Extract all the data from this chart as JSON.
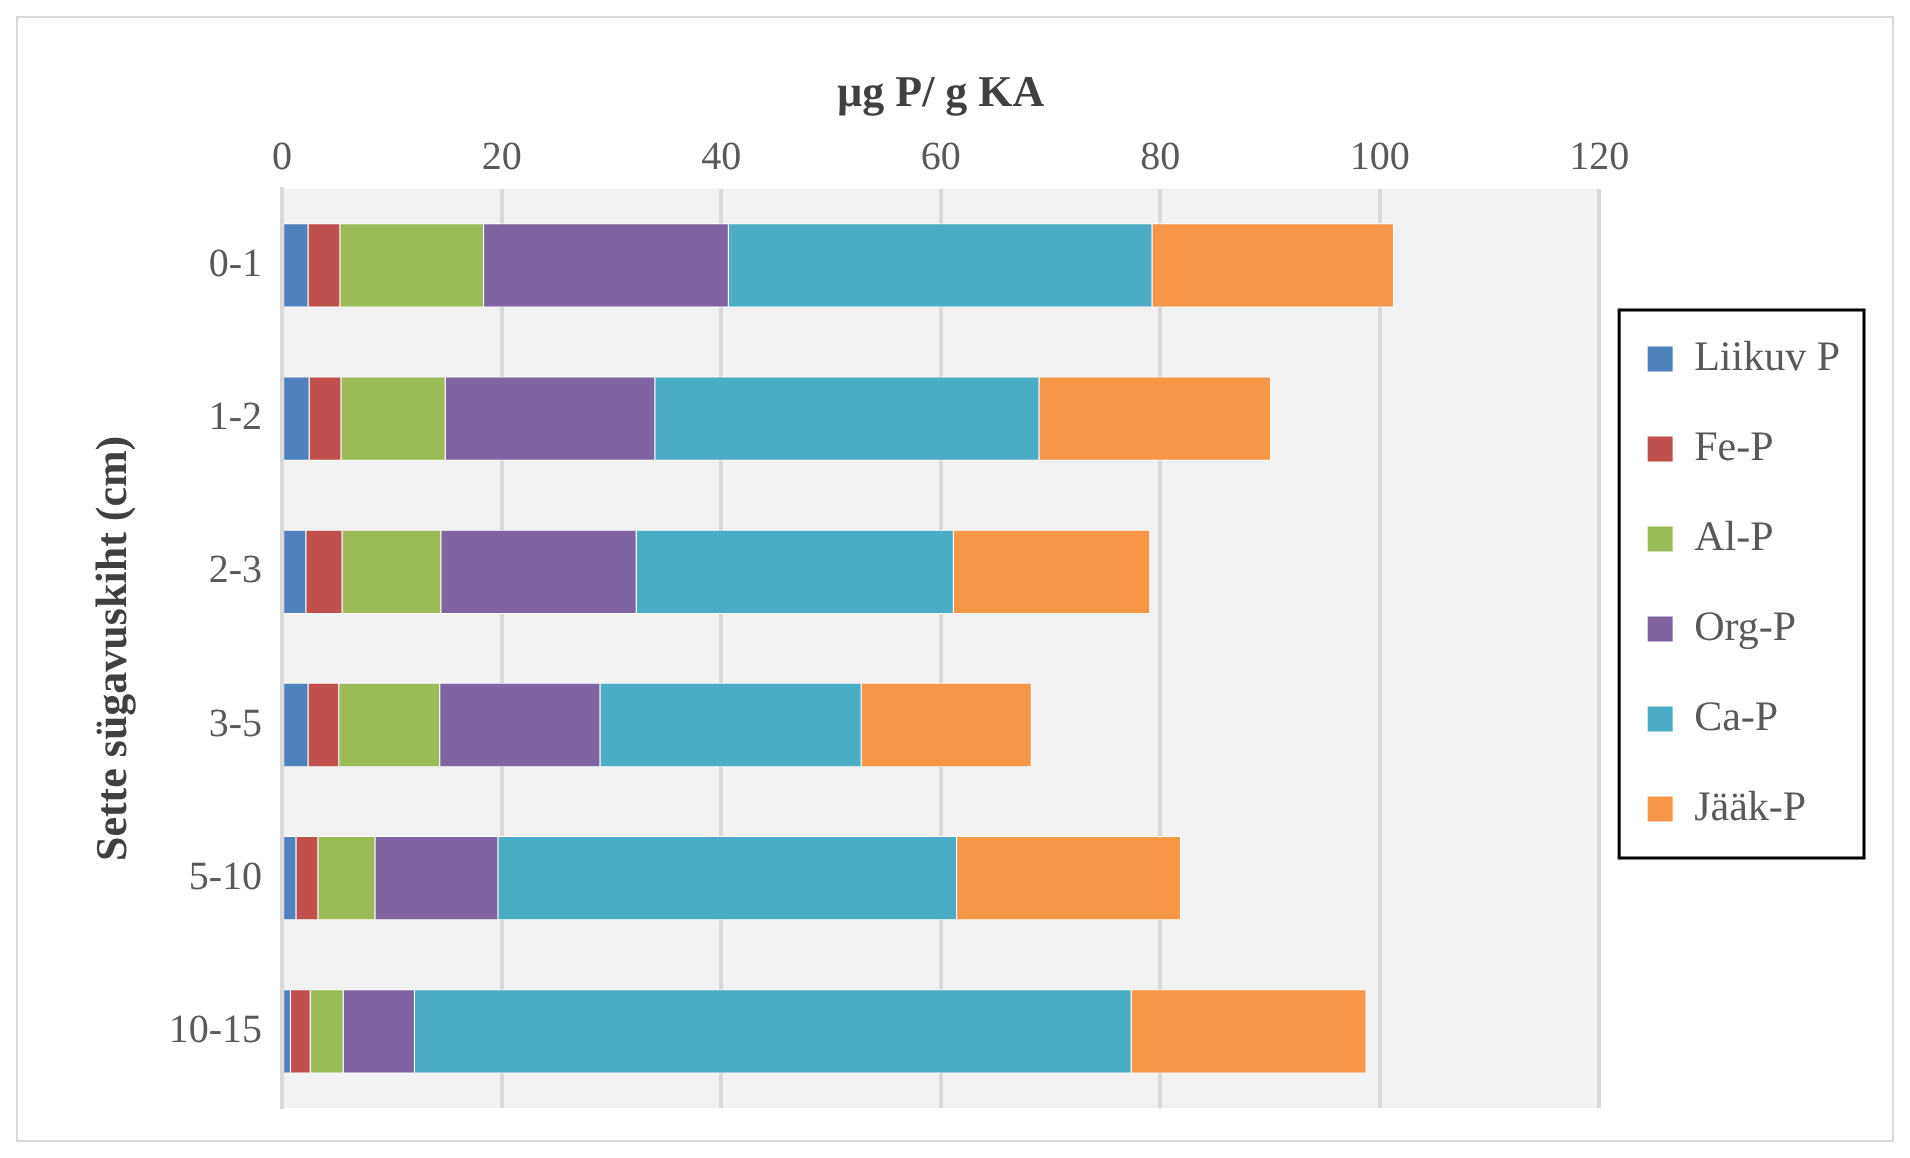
{
  "chart_data": {
    "type": "bar",
    "orientation": "horizontal",
    "stacked": true,
    "xlabel": "µg P/ g KA",
    "ylabel": "Sette sügavuskiht (cm)",
    "categories": [
      "0-1",
      "1-2",
      "2-3",
      "3-5",
      "5-10",
      "10-15"
    ],
    "series": [
      {
        "name": "Liikuv P",
        "color": "#4f81bd",
        "values": [
          2.4,
          2.5,
          2.2,
          2.4,
          1.3,
          0.8
        ]
      },
      {
        "name": "Fe-P",
        "color": "#c0504d",
        "values": [
          2.9,
          2.9,
          3.3,
          2.8,
          2.0,
          1.8
        ]
      },
      {
        "name": "Al-P",
        "color": "#9bbb59",
        "values": [
          13.1,
          9.5,
          9.0,
          9.2,
          5.2,
          3.0
        ]
      },
      {
        "name": "Org-P",
        "color": "#8064a2",
        "values": [
          22.3,
          19.1,
          17.8,
          14.6,
          11.2,
          6.5
        ]
      },
      {
        "name": "Ca-P",
        "color": "#4bacc6",
        "values": [
          38.6,
          35.0,
          28.9,
          23.8,
          41.8,
          65.3
        ]
      },
      {
        "name": "Jääk-P",
        "color": "#f79646",
        "values": [
          22.0,
          21.1,
          17.9,
          15.5,
          20.4,
          21.4
        ]
      }
    ],
    "xlim": [
      0,
      120
    ],
    "xticks": [
      0,
      20,
      40,
      60,
      80,
      100,
      120
    ],
    "grid": "x",
    "legend": "right"
  }
}
